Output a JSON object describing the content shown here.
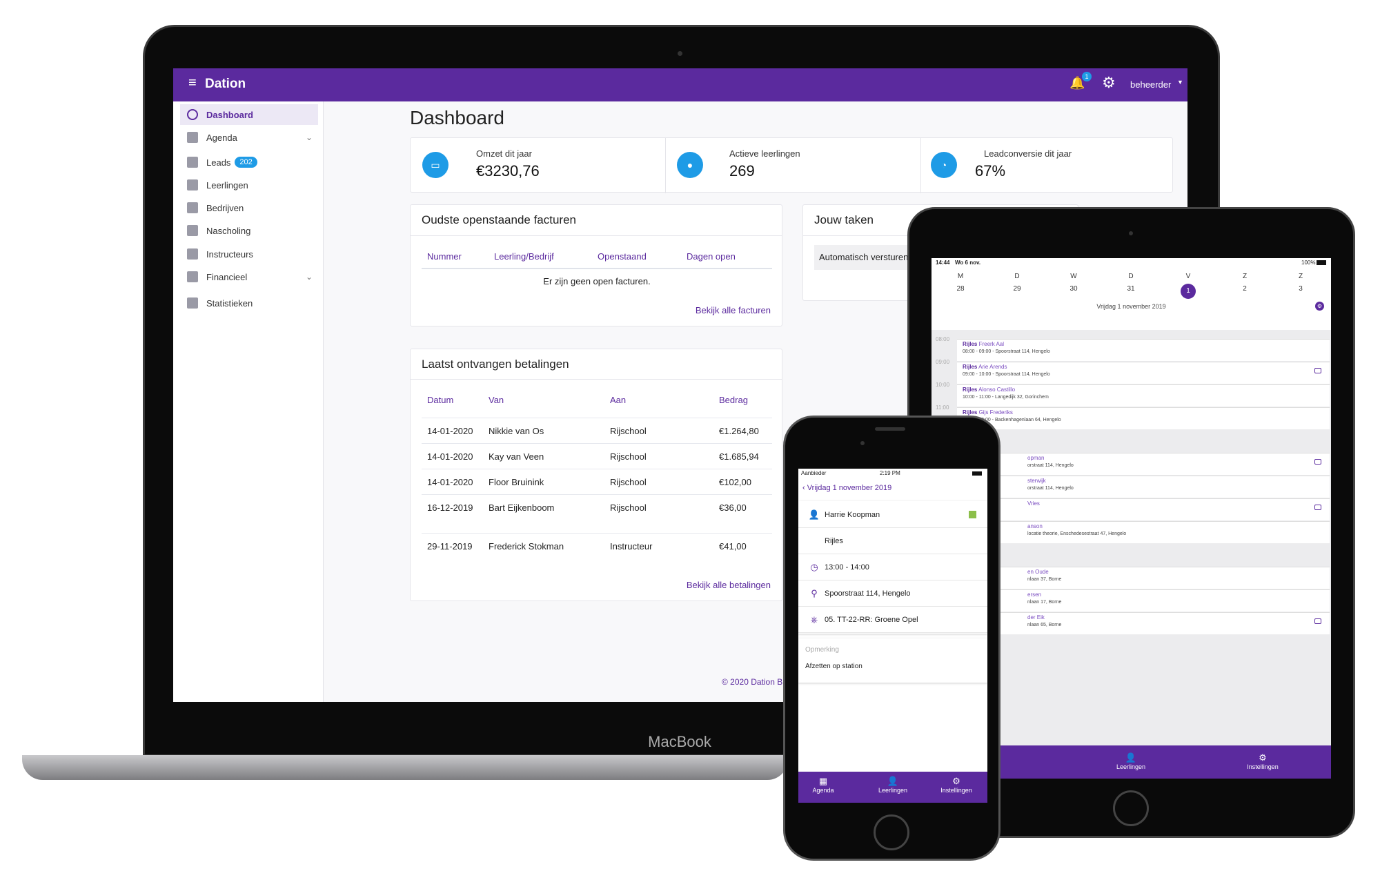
{
  "laptop": {
    "brand_label": "MacBook",
    "header": {
      "app_title": "Dation",
      "notification_count": "1",
      "user_menu": "beheerder"
    },
    "sidebar": {
      "items": [
        {
          "label": "Dashboard",
          "icon": "dashboard-gauge-icon",
          "active": true
        },
        {
          "label": "Agenda",
          "icon": "calendar-icon",
          "expandable": true
        },
        {
          "label": "Leads",
          "icon": "lead-icon",
          "badge": "202"
        },
        {
          "label": "Leerlingen",
          "icon": "user-icon"
        },
        {
          "label": "Bedrijven",
          "icon": "building-icon"
        },
        {
          "label": "Nascholing",
          "icon": "bus-icon"
        },
        {
          "label": "Instructeurs",
          "icon": "instructor-icon"
        },
        {
          "label": "Financieel",
          "icon": "wallet-icon",
          "expandable": true
        },
        {
          "label": "Statistieken",
          "icon": "bar-chart-icon"
        }
      ]
    },
    "page_title": "Dashboard",
    "stats": [
      {
        "label": "Omzet dit jaar",
        "value": "€3230,76",
        "icon": "wallet-icon"
      },
      {
        "label": "Actieve leerlingen",
        "value": "269",
        "icon": "user-icon"
      },
      {
        "label": "Leadconversie dit jaar",
        "value": "67%",
        "icon": "pie-chart-icon"
      }
    ],
    "invoices": {
      "title": "Oudste openstaande facturen",
      "columns": [
        "Nummer",
        "Leerling/Bedrijf",
        "Openstaand",
        "Dagen open"
      ],
      "empty_message": "Er zijn geen open facturen.",
      "link": "Bekijk alle facturen"
    },
    "payments": {
      "title": "Laatst ontvangen betalingen",
      "columns": [
        "Datum",
        "Van",
        "Aan",
        "Bedrag"
      ],
      "rows": [
        [
          "14-01-2020",
          "Nikkie van Os",
          "Rijschool",
          "€1.264,80"
        ],
        [
          "14-01-2020",
          "Kay van Veen",
          "Rijschool",
          "€1.685,94"
        ],
        [
          "14-01-2020",
          "Floor Bruinink",
          "Rijschool",
          "€102,00"
        ],
        [
          "16-12-2019",
          "Bart Eijkenboom",
          "Rijschool",
          "€36,00"
        ],
        [
          "29-11-2019",
          "Frederick Stokman",
          "Instructeur",
          "€41,00"
        ]
      ],
      "link": "Bekijk alle betalingen"
    },
    "tasks": {
      "title": "Jouw taken",
      "item": "Automatisch versturen"
    },
    "footer": "© 2020 Dation B"
  },
  "tablet": {
    "status_time": "14:44",
    "status_date": "Wo 6 nov.",
    "battery": "100%",
    "weekdays": [
      "M",
      "D",
      "W",
      "D",
      "V",
      "Z",
      "Z"
    ],
    "dates": [
      "28",
      "29",
      "30",
      "31",
      "1",
      "2",
      "3"
    ],
    "selected_date": "1",
    "date_title": "Vrijdag 1 november 2019",
    "times": [
      "08:00",
      "09:00",
      "10:00",
      "11:00"
    ],
    "events": [
      {
        "type": "Rijles",
        "name": "Freerk Aal",
        "detail": "08:00 - 09:00 - Spoorstraat 114, Hengelo"
      },
      {
        "type": "Rijles",
        "name": "Arie Arends",
        "detail": "09:00 - 10:00 - Spoorstraat 114, Hengelo",
        "comment": true
      },
      {
        "type": "Rijles",
        "name": "Alonso Castillo",
        "detail": "10:00 - 11:00 - Langedijk 32, Gorinchem"
      },
      {
        "type": "Rijles",
        "name": "Gijs Frederiks",
        "detail": "11:00 - 12:00 - Backenhagenlaan 64, Hengelo"
      }
    ],
    "partial_events": [
      {
        "name": "opman",
        "detail": "orstraat 114, Hengelo",
        "comment": true
      },
      {
        "name": "sterwijk",
        "detail": "orstraat 114, Hengelo"
      },
      {
        "name": "Vries",
        "detail": "",
        "comment": true
      },
      {
        "name": "anson",
        "detail": "locatie theorie, Enschedesestraat 47, Hengelo"
      },
      {
        "name": "en Oude",
        "detail": "nlaan 37, Borne"
      },
      {
        "name": "ersen",
        "detail": "nlaan 17, Borne"
      },
      {
        "name": "der Eik",
        "detail": "nlaan 65, Borne",
        "comment": true
      }
    ],
    "tabs": [
      "da",
      "Leerlingen",
      "Instellingen"
    ]
  },
  "phone": {
    "carrier": "Aanbieder",
    "time": "2:19 PM",
    "back_label": "Vrijdag 1 november 2019",
    "student": "Harrie Koopman",
    "status_color": "#8cbf4a",
    "lesson_type": "Rijles",
    "time_range": "13:00 - 14:00",
    "location": "Spoorstraat 114, Hengelo",
    "vehicle": "05. TT-22-RR: Groene Opel",
    "remark_label": "Opmerking",
    "remark": "Afzetten op station",
    "tabs": [
      "Agenda",
      "Leerlingen",
      "Instellingen"
    ]
  },
  "colors": {
    "brand": "#5b2a9e",
    "accent": "#1e9be6"
  }
}
